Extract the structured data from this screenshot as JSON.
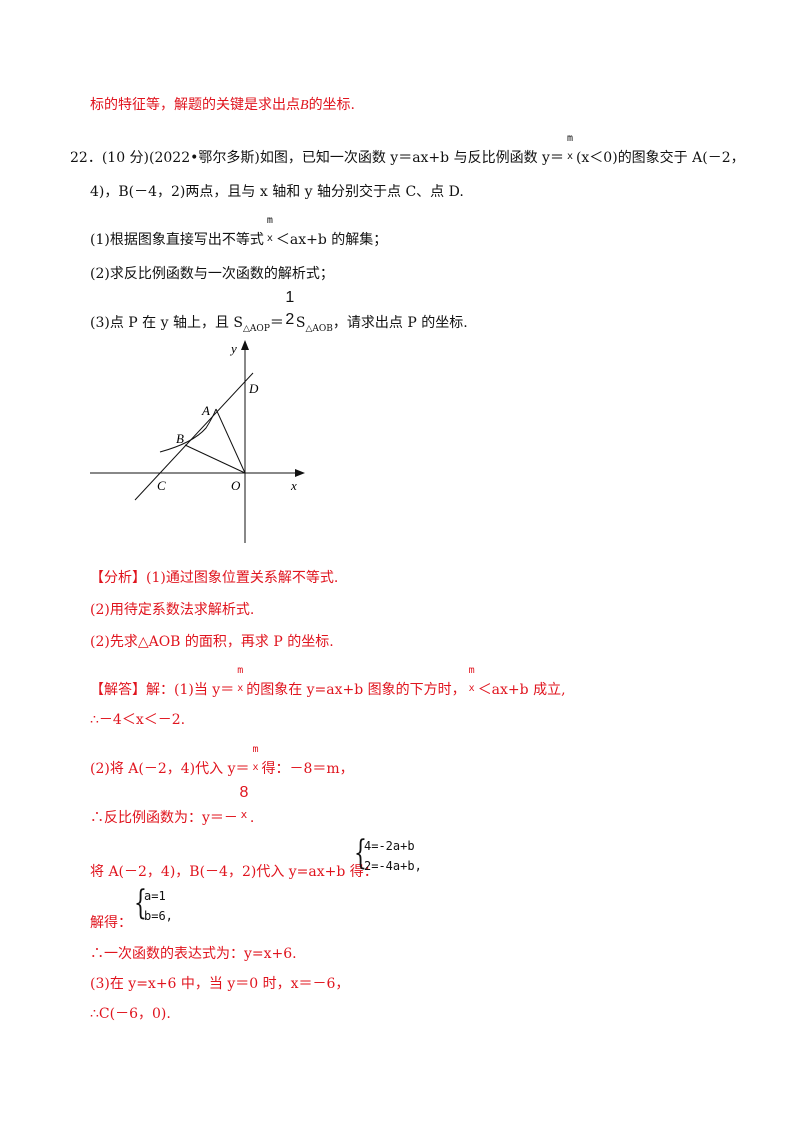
{
  "header_line": {
    "text": "标的特征等，解题的关键是求出点",
    "point": "B",
    "tail": "的坐标."
  },
  "problem": {
    "number": "22．",
    "source": "(10 分)(2022•鄂尔多斯)",
    "line1_text": "如图，已知一次函数 ",
    "eq_linear": "y＝ax+b",
    "line1_mid": " 与反比例函数 ",
    "y_eq": "y＝",
    "frac_num": "m",
    "frac_den": "x",
    "cond": "(x＜0)",
    "line1_tail": "的图象交于 A(－2，",
    "line2": "4)，B(－4，2)两点，且与 x 轴和 y 轴分别交于点 C、点 D.",
    "q1_pre": "(1)根据图象直接写出不等式",
    "q1_post": "＜ax+b 的解集；",
    "q2": "(2)求反比例函数与一次函数的解析式；",
    "q3_pre": "(3)点 P 在 y 轴上，且 S",
    "q3_sub1": "△AOP",
    "q3_eq": "＝",
    "q3_num": "1",
    "q3_den": "2",
    "q3_s": "S",
    "q3_sub2": "△AOB",
    "q3_post": "，请求出点 P 的坐标."
  },
  "figure": {
    "labels": {
      "y": "y",
      "x": "x",
      "O": "O",
      "A": "A",
      "B": "B",
      "C": "C",
      "D": "D"
    }
  },
  "analysis": {
    "tag": "【分析】",
    "l1": "(1)通过图象位置关系解不等式.",
    "l2": "(2)用待定系数法求解析式.",
    "l3": "(2)先求△AOB 的面积，再求 P 的坐标."
  },
  "solution": {
    "tag": "【解答】",
    "l1_a": "解：(1)当 y＝",
    "l1_b": "的图象在 y=ax+b 图象的下方时，",
    "l1_c": "＜ax+b 成立,",
    "l2": "∴－4＜x＜－2.",
    "l3_a": "(2)将 A(－2，4)代入 y＝",
    "l3_b": "得：－8＝m，",
    "l4_a": "∴反比例函数为：y＝－",
    "l4_num": "8",
    "l4_den": "x",
    "l4_b": ".",
    "l5": "将 A(－2，4)，B(－4，2)代入 y=ax+b 得：",
    "sys1_r1": "4=-2a+b",
    "sys1_r2": "2=-4a+b,",
    "l6": "解得：",
    "sys2_r1": "a=1",
    "sys2_r2": "b=6,",
    "l7": "∴一次函数的表达式为：y=x+6.",
    "l8": "(3)在 y=x+6 中，当 y＝0 时，x＝－6，",
    "l9": "∴C(－6，0)."
  }
}
